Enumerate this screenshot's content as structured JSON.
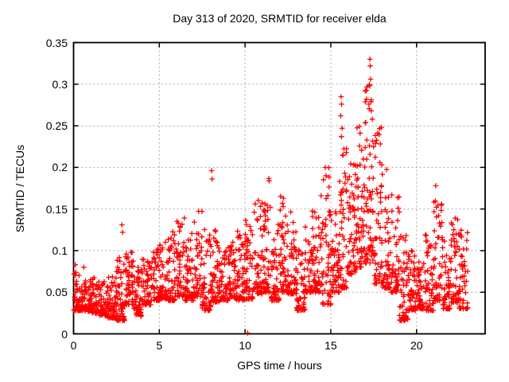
{
  "chart_data": {
    "type": "scatter",
    "title": "Day 313 of 2020, SRMTID for receiver elda",
    "xlabel": "GPS time / hours",
    "ylabel": "SRMTID / TECUs",
    "xlim": [
      0,
      24
    ],
    "ylim": [
      0,
      0.35
    ],
    "xticks": [
      0,
      5,
      10,
      15,
      20
    ],
    "yticks": [
      0,
      0.05,
      0.1,
      0.15,
      0.2,
      0.25,
      0.3,
      0.35
    ],
    "grid": true,
    "legend": null,
    "marker": "plus",
    "marker_color": "#ff0000",
    "grid_color": "#a8a8a8",
    "axis_color": "#000000",
    "series": [
      {
        "name": "SRMTID",
        "note": "dense scatter of ~2300 points, 0-23 h; bins are [t_start_h, t_end_h, n_points, y_min_TECU, y_max_TECU, optional_skew_exponent]",
        "density_bins": [
          [
            0.0,
            0.5,
            55,
            0.028,
            0.075
          ],
          [
            0.5,
            1.0,
            55,
            0.027,
            0.065
          ],
          [
            1.0,
            1.5,
            55,
            0.025,
            0.068
          ],
          [
            1.5,
            2.0,
            55,
            0.022,
            0.066
          ],
          [
            2.0,
            2.5,
            55,
            0.019,
            0.075
          ],
          [
            2.5,
            3.0,
            55,
            0.016,
            0.092
          ],
          [
            3.0,
            3.5,
            55,
            0.035,
            0.105,
            1.6
          ],
          [
            3.5,
            4.0,
            50,
            0.021,
            0.08
          ],
          [
            4.0,
            4.5,
            50,
            0.035,
            0.092
          ],
          [
            4.5,
            5.0,
            50,
            0.04,
            0.102
          ],
          [
            5.0,
            5.5,
            50,
            0.042,
            0.115
          ],
          [
            5.5,
            6.0,
            50,
            0.04,
            0.126
          ],
          [
            6.0,
            6.5,
            50,
            0.045,
            0.143
          ],
          [
            6.5,
            7.0,
            50,
            0.04,
            0.13
          ],
          [
            7.0,
            7.5,
            50,
            0.045,
            0.152
          ],
          [
            7.5,
            8.0,
            50,
            0.028,
            0.133
          ],
          [
            8.0,
            8.5,
            50,
            0.038,
            0.125
          ],
          [
            8.5,
            9.0,
            50,
            0.04,
            0.102
          ],
          [
            9.0,
            9.5,
            50,
            0.042,
            0.113
          ],
          [
            9.5,
            10.0,
            50,
            0.04,
            0.125
          ],
          [
            10.0,
            10.5,
            50,
            0.042,
            0.138
          ],
          [
            10.5,
            11.0,
            50,
            0.048,
            0.165
          ],
          [
            11.0,
            11.5,
            50,
            0.05,
            0.19
          ],
          [
            11.5,
            12.0,
            50,
            0.04,
            0.145
          ],
          [
            12.0,
            12.5,
            50,
            0.05,
            0.172
          ],
          [
            12.5,
            13.0,
            50,
            0.048,
            0.158
          ],
          [
            13.0,
            13.5,
            50,
            0.028,
            0.102
          ],
          [
            13.5,
            14.0,
            50,
            0.05,
            0.15
          ],
          [
            14.0,
            14.5,
            50,
            0.05,
            0.168
          ],
          [
            14.5,
            15.0,
            50,
            0.035,
            0.2
          ],
          [
            15.0,
            15.5,
            50,
            0.05,
            0.152
          ],
          [
            15.5,
            16.0,
            55,
            0.055,
            0.23,
            1.8
          ],
          [
            16.0,
            16.5,
            55,
            0.07,
            0.205,
            1.7
          ],
          [
            16.5,
            17.0,
            55,
            0.08,
            0.255,
            1.7
          ],
          [
            17.0,
            17.5,
            60,
            0.085,
            0.3,
            1.6
          ],
          [
            17.5,
            18.0,
            55,
            0.06,
            0.25,
            1.9
          ],
          [
            18.0,
            18.5,
            50,
            0.055,
            0.205
          ],
          [
            18.5,
            19.0,
            50,
            0.05,
            0.17
          ],
          [
            19.0,
            19.5,
            50,
            0.016,
            0.12
          ],
          [
            19.5,
            20.0,
            50,
            0.028,
            0.1
          ],
          [
            20.0,
            20.5,
            50,
            0.03,
            0.096
          ],
          [
            20.5,
            21.0,
            50,
            0.028,
            0.12
          ],
          [
            21.0,
            21.5,
            50,
            0.04,
            0.163
          ],
          [
            21.5,
            22.0,
            50,
            0.03,
            0.12
          ],
          [
            22.0,
            22.5,
            50,
            0.038,
            0.148
          ],
          [
            22.5,
            23.0,
            45,
            0.03,
            0.134
          ]
        ],
        "outliers": [
          [
            10.15,
            0.001
          ],
          [
            0.1,
            0.083
          ],
          [
            0.6,
            0.08
          ],
          [
            2.82,
            0.131
          ],
          [
            2.86,
            0.122
          ],
          [
            8.05,
            0.196
          ],
          [
            8.08,
            0.186
          ],
          [
            14.68,
            0.2
          ],
          [
            14.72,
            0.19
          ],
          [
            15.6,
            0.285
          ],
          [
            15.63,
            0.276
          ],
          [
            15.58,
            0.262
          ],
          [
            15.66,
            0.247
          ],
          [
            15.62,
            0.237
          ],
          [
            17.28,
            0.33
          ],
          [
            17.3,
            0.322
          ],
          [
            17.32,
            0.306
          ],
          [
            17.27,
            0.298
          ],
          [
            17.22,
            0.276
          ],
          [
            17.36,
            0.268
          ],
          [
            17.42,
            0.258
          ],
          [
            21.12,
            0.178
          ],
          [
            19.3,
            0.016
          ],
          [
            19.42,
            0.02
          ],
          [
            20.68,
            0.028
          ],
          [
            22.72,
            0.03
          ]
        ]
      }
    ]
  }
}
